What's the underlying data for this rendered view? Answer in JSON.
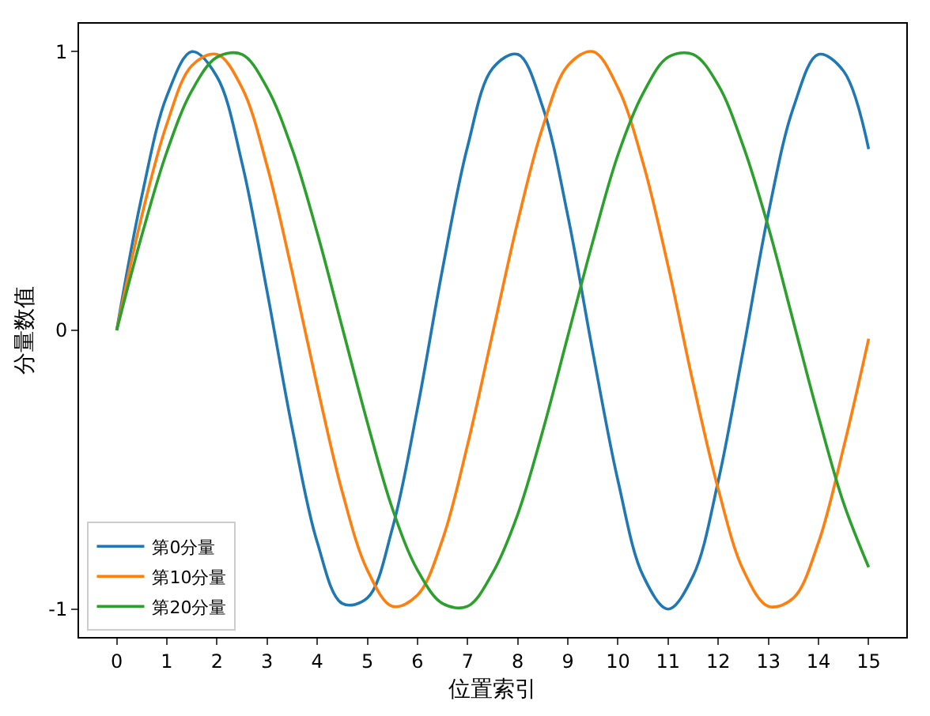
{
  "chart_data": {
    "type": "line",
    "xlabel": "位置索引",
    "ylabel": "分量数值",
    "x": [
      0,
      0.5,
      1,
      1.5,
      2,
      2.5,
      3,
      3.5,
      4,
      4.5,
      5,
      5.5,
      6,
      6.5,
      7,
      7.5,
      8,
      8.5,
      9,
      9.5,
      10,
      10.5,
      11,
      11.5,
      12,
      12.5,
      13,
      13.5,
      14,
      14.5,
      15
    ],
    "series": [
      {
        "name": "第0分量",
        "color": "#1f77b4",
        "values": [
          0,
          0.48,
          0.84,
          1.0,
          0.91,
          0.6,
          0.14,
          -0.35,
          -0.76,
          -0.98,
          -0.96,
          -0.71,
          -0.28,
          0.22,
          0.66,
          0.94,
          0.99,
          0.8,
          0.41,
          -0.08,
          -0.54,
          -0.88,
          -1.0,
          -0.88,
          -0.54,
          -0.07,
          0.42,
          0.8,
          0.99,
          0.93,
          0.65
        ]
      },
      {
        "name": "第10分量",
        "color": "#ff7f0e",
        "values": [
          0,
          0.41,
          0.74,
          0.95,
          0.99,
          0.87,
          0.59,
          0.21,
          -0.2,
          -0.58,
          -0.86,
          -0.99,
          -0.95,
          -0.75,
          -0.41,
          -0.01,
          0.39,
          0.73,
          0.95,
          1.0,
          0.87,
          0.6,
          0.23,
          -0.19,
          -0.57,
          -0.86,
          -0.99,
          -0.96,
          -0.76,
          -0.42,
          -0.03
        ]
      },
      {
        "name": "第20分量",
        "color": "#2ca02c",
        "values": [
          0,
          0.34,
          0.64,
          0.86,
          0.98,
          0.99,
          0.87,
          0.65,
          0.35,
          0.01,
          -0.33,
          -0.64,
          -0.86,
          -0.98,
          -0.99,
          -0.87,
          -0.66,
          -0.36,
          -0.02,
          0.32,
          0.63,
          0.85,
          0.98,
          0.99,
          0.88,
          0.66,
          0.37,
          0.03,
          -0.31,
          -0.62,
          -0.85
        ]
      }
    ],
    "xlim": [
      -0.75,
      15.75
    ],
    "xticks": [
      0,
      1,
      2,
      3,
      4,
      5,
      6,
      7,
      8,
      9,
      10,
      11,
      12,
      13,
      14,
      15
    ],
    "ylim": [
      -1.1,
      1.1
    ],
    "yticks": [
      -1,
      0,
      1
    ],
    "legend": "bottom left",
    "grid": false,
    "marker": "none",
    "line_style": "solid"
  }
}
